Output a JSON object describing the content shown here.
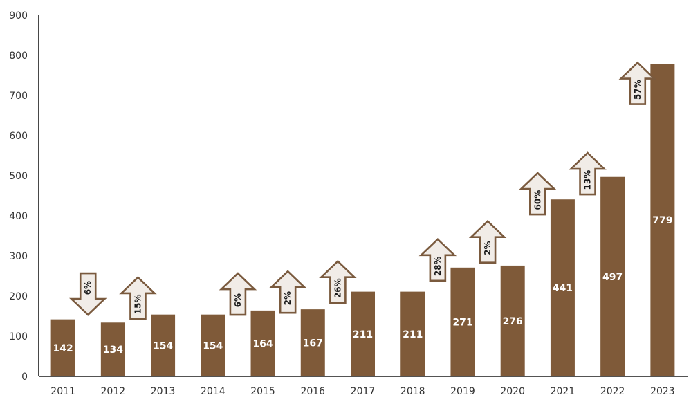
{
  "chart_data": {
    "type": "bar",
    "categories": [
      "2011",
      "2012",
      "2013",
      "2014",
      "2015",
      "2016",
      "2017",
      "2018",
      "2019",
      "2020",
      "2021",
      "2022",
      "2023"
    ],
    "values": [
      142,
      134,
      154,
      154,
      164,
      167,
      211,
      211,
      271,
      276,
      441,
      497,
      779
    ],
    "data_labels": [
      "142",
      "134",
      "154",
      "154",
      "164",
      "167",
      "211",
      "211",
      "271",
      "276",
      "441",
      "497",
      "779"
    ],
    "ylim": [
      0,
      900
    ],
    "yticks": [
      0,
      100,
      200,
      300,
      400,
      500,
      600,
      700,
      800,
      900
    ],
    "ytick_labels": [
      "0",
      "100",
      "200",
      "300",
      "400",
      "500",
      "600",
      "700",
      "800",
      "900"
    ],
    "title": "",
    "xlabel": "",
    "ylabel": "",
    "grid": false,
    "bar_color": "#7f5a39",
    "arrow_fill": "#f1ece7",
    "arrow_stroke": "#7a5a3e",
    "change_annotations": [
      {
        "after": "2011",
        "to": "2012",
        "label": "6%",
        "direction": "down",
        "anchor_value": 205
      },
      {
        "after": "2012",
        "to": "2013",
        "label": "15%",
        "direction": "up",
        "anchor_value": 195
      },
      {
        "after": "2014",
        "to": "2015",
        "label": "6%",
        "direction": "up",
        "anchor_value": 205
      },
      {
        "after": "2015",
        "to": "2016",
        "label": "2%",
        "direction": "up",
        "anchor_value": 210
      },
      {
        "after": "2016",
        "to": "2017",
        "label": "26%",
        "direction": "up",
        "anchor_value": 235
      },
      {
        "after": "2018",
        "to": "2019",
        "label": "28%",
        "direction": "up",
        "anchor_value": 290
      },
      {
        "after": "2019",
        "to": "2020",
        "label": "2%",
        "direction": "up",
        "anchor_value": 335
      },
      {
        "after": "2020",
        "to": "2021",
        "label": "60%",
        "direction": "up",
        "anchor_value": 455
      },
      {
        "after": "2021",
        "to": "2022",
        "label": "13%",
        "direction": "up",
        "anchor_value": 505
      },
      {
        "after": "2022",
        "to": "2023",
        "label": "57%",
        "direction": "up",
        "anchor_value": 730
      }
    ]
  }
}
